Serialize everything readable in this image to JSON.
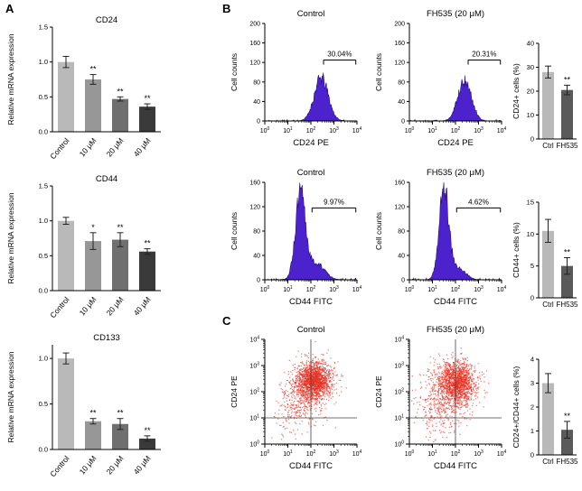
{
  "panels": {
    "A": {
      "label": "A"
    },
    "B": {
      "label": "B"
    },
    "C": {
      "label": "C"
    }
  },
  "palette": {
    "histogram_fill": "#4b22cc",
    "histogram_stroke": "#2a0f86",
    "scatter_color": "#e63020",
    "bar_grays_doseseries": [
      "#b9b9b9",
      "#979797",
      "#6f6f6f",
      "#3a3a3a"
    ],
    "bar_grays_ctrl_vs_fh535": [
      "#b9b9b9",
      "#5a5a5a"
    ]
  },
  "chart_data": [
    {
      "id": "cd24-mrna",
      "type": "bar",
      "title": "CD24",
      "ylabel": "Relative mRNA expression",
      "categories": [
        "Control",
        "10 μM",
        "20 μM",
        "40 μM"
      ],
      "values": [
        1.0,
        0.75,
        0.47,
        0.36
      ],
      "errors": [
        0.08,
        0.07,
        0.03,
        0.04
      ],
      "sig": [
        "",
        "**",
        "**",
        "**"
      ],
      "ylim": [
        0,
        1.5
      ],
      "yticks": [
        0,
        0.5,
        1,
        1.5
      ],
      "ydecimals": 1,
      "colors": [
        "#b9b9b9",
        "#979797",
        "#6f6f6f",
        "#3a3a3a"
      ]
    },
    {
      "id": "cd44-mrna",
      "type": "bar",
      "title": "CD44",
      "ylabel": "Relative mRNA expression",
      "categories": [
        "Control",
        "10 μM",
        "20 μM",
        "40 μM"
      ],
      "values": [
        1.0,
        0.71,
        0.73,
        0.56
      ],
      "errors": [
        0.05,
        0.12,
        0.1,
        0.04
      ],
      "sig": [
        "",
        "*",
        "**",
        "**"
      ],
      "ylim": [
        0,
        1.5
      ],
      "yticks": [
        0,
        0.5,
        1,
        1.5
      ],
      "ydecimals": 1,
      "colors": [
        "#b9b9b9",
        "#979797",
        "#6f6f6f",
        "#3a3a3a"
      ]
    },
    {
      "id": "cd133-mrna",
      "type": "bar",
      "title": "CD133",
      "ylabel": "Relative mRNA expression",
      "categories": [
        "Control",
        "10 μM",
        "20 μM",
        "40 μM"
      ],
      "values": [
        1.0,
        0.31,
        0.28,
        0.12
      ],
      "errors": [
        0.06,
        0.03,
        0.06,
        0.03
      ],
      "sig": [
        "",
        "**",
        "**",
        "**"
      ],
      "ylim": [
        0,
        1.15
      ],
      "yticks": [
        0,
        0.5,
        1
      ],
      "ydecimals": 1,
      "colors": [
        "#b9b9b9",
        "#979797",
        "#6f6f6f",
        "#3a3a3a"
      ]
    },
    {
      "id": "hist-control-cd24",
      "type": "histogram",
      "title": "Control",
      "xlabel": "CD24 PE",
      "ylabel": "Cell counts",
      "ylim": [
        0,
        200
      ],
      "yticks": [
        0,
        40,
        80,
        120,
        160,
        200
      ],
      "x_exponents": [
        0,
        1,
        2,
        3,
        4
      ],
      "components": [
        {
          "mu": 2.45,
          "sigma": 0.3,
          "amp": 88
        }
      ],
      "gate": {
        "from": 2.55,
        "to": 3.95,
        "count": 125,
        "label": "30.04%"
      },
      "fill": "#4b22cc",
      "stroke": "#2a0f86",
      "seed": 11
    },
    {
      "id": "hist-fh535-cd24",
      "type": "histogram",
      "title": "FH535 (20 μM)",
      "xlabel": "CD24 PE",
      "ylabel": "Cell counts",
      "ylim": [
        0,
        200
      ],
      "yticks": [
        0,
        40,
        80,
        120,
        160,
        200
      ],
      "x_exponents": [
        0,
        1,
        2,
        3,
        4
      ],
      "components": [
        {
          "mu": 2.4,
          "sigma": 0.29,
          "amp": 84
        }
      ],
      "gate": {
        "from": 2.55,
        "to": 3.95,
        "count": 125,
        "label": "20.31%"
      },
      "fill": "#4b22cc",
      "stroke": "#2a0f86",
      "seed": 12
    },
    {
      "id": "cd24-positive",
      "type": "bar",
      "ylabel": "CD24+ cells (%)",
      "categories": [
        "Ctrl",
        "FH535"
      ],
      "values": [
        28,
        20.5
      ],
      "errors": [
        2.5,
        2
      ],
      "sig": [
        "",
        "**"
      ],
      "ylim": [
        0,
        40
      ],
      "yticks": [
        0,
        10,
        20,
        30,
        40
      ],
      "ydecimals": 0,
      "colors": [
        "#b9b9b9",
        "#5a5a5a"
      ]
    },
    {
      "id": "hist-control-cd44",
      "type": "histogram",
      "title": "Control",
      "xlabel": "CD44 FITC",
      "ylabel": "Cell counts",
      "ylim": [
        0,
        160
      ],
      "yticks": [
        0,
        40,
        80,
        120,
        160
      ],
      "x_exponents": [
        0,
        1,
        2,
        3,
        4
      ],
      "components": [
        {
          "mu": 1.55,
          "sigma": 0.22,
          "amp": 138
        },
        {
          "mu": 2.25,
          "sigma": 0.35,
          "amp": 26
        }
      ],
      "gate": {
        "from": 2.05,
        "to": 3.95,
        "count": 118,
        "label": "9.97%"
      },
      "fill": "#4b22cc",
      "stroke": "#2a0f86",
      "seed": 13
    },
    {
      "id": "hist-fh535-cd44",
      "type": "histogram",
      "title": "FH535 (20 μM)",
      "xlabel": "CD44 FITC",
      "ylabel": "Cell counts",
      "ylim": [
        0,
        160
      ],
      "yticks": [
        0,
        40,
        80,
        120,
        160
      ],
      "x_exponents": [
        0,
        1,
        2,
        3,
        4
      ],
      "components": [
        {
          "mu": 1.5,
          "sigma": 0.21,
          "amp": 148
        },
        {
          "mu": 2.15,
          "sigma": 0.3,
          "amp": 18
        }
      ],
      "gate": {
        "from": 2.05,
        "to": 3.95,
        "count": 118,
        "label": "4.62%"
      },
      "fill": "#4b22cc",
      "stroke": "#2a0f86",
      "seed": 14
    },
    {
      "id": "cd44-positive",
      "type": "bar",
      "ylabel": "CD44+ cells (%)",
      "categories": [
        "Ctrl",
        "FH535"
      ],
      "values": [
        10.5,
        5
      ],
      "errors": [
        1.8,
        1.3
      ],
      "sig": [
        "",
        "**"
      ],
      "ylim": [
        0,
        15
      ],
      "yticks": [
        0,
        5,
        10,
        15
      ],
      "ydecimals": 0,
      "colors": [
        "#b9b9b9",
        "#5a5a5a"
      ]
    },
    {
      "id": "scatter-control",
      "type": "scatter",
      "title": "Control",
      "xlabel": "CD44 FITC",
      "ylabel": "CD24 PE",
      "x_exponents": [
        0,
        1,
        2,
        3,
        4
      ],
      "y_exponents": [
        0,
        1,
        2,
        3,
        4
      ],
      "quadrant": {
        "x": 2.0,
        "y": 1.0
      },
      "color": "#e63020",
      "components": [
        {
          "n": 1600,
          "cx": 2.15,
          "cy": 2.45,
          "sdx": 0.38,
          "sdy": 0.35
        },
        {
          "n": 350,
          "cx": 1.7,
          "cy": 1.9,
          "sdx": 0.55,
          "sdy": 0.55
        },
        {
          "n": 130,
          "cx": 1.25,
          "cy": 1.3,
          "sdx": 0.5,
          "sdy": 0.55
        }
      ],
      "seed": 21
    },
    {
      "id": "scatter-fh535",
      "type": "scatter",
      "title": "FH535 (20 μM)",
      "xlabel": "CD44 FITC",
      "ylabel": "CD24 PE",
      "x_exponents": [
        0,
        1,
        2,
        3,
        4
      ],
      "y_exponents": [
        0,
        1,
        2,
        3,
        4
      ],
      "quadrant": {
        "x": 2.0,
        "y": 1.0
      },
      "color": "#e63020",
      "components": [
        {
          "n": 1500,
          "cx": 2.05,
          "cy": 2.35,
          "sdx": 0.42,
          "sdy": 0.4
        },
        {
          "n": 380,
          "cx": 1.6,
          "cy": 1.8,
          "sdx": 0.6,
          "sdy": 0.6
        },
        {
          "n": 120,
          "cx": 1.1,
          "cy": 1.1,
          "sdx": 0.5,
          "sdy": 0.5
        }
      ],
      "seed": 22
    },
    {
      "id": "cd24-cd44-double-positive",
      "type": "bar",
      "ylabel": "CD24+/CD44+ cells (%)",
      "categories": [
        "Ctrl",
        "FH535"
      ],
      "values": [
        3.0,
        1.05
      ],
      "errors": [
        0.4,
        0.35
      ],
      "sig": [
        "",
        "**"
      ],
      "ylim": [
        0,
        4
      ],
      "yticks": [
        0,
        1,
        2,
        3,
        4
      ],
      "ydecimals": 0,
      "colors": [
        "#b9b9b9",
        "#5a5a5a"
      ]
    }
  ]
}
